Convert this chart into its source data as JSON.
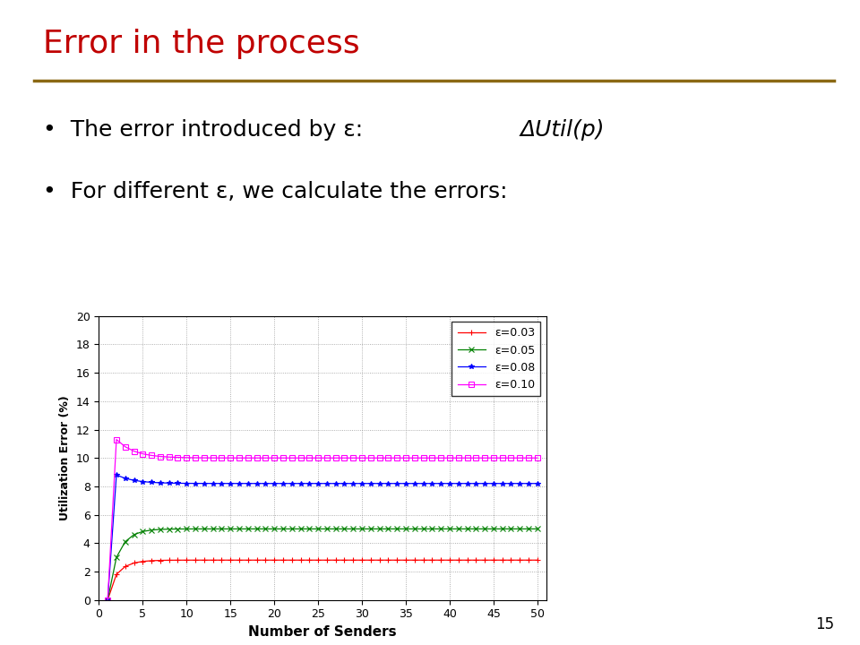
{
  "title": "Error in the process",
  "title_color": "#C00000",
  "rule_color": "#8B6914",
  "bullet1_plain": "The error introduced by ε: ",
  "bullet1_italic": "ΔUtil(p)",
  "bullet2": "For different ε, we calculate the errors:",
  "slide_number": "15",
  "background_color": "#ffffff",
  "xlabel": "Number of Senders",
  "ylabel": "Utilization Error (%)",
  "xlim": [
    0,
    51
  ],
  "ylim": [
    0,
    20
  ],
  "xticks": [
    0,
    5,
    10,
    15,
    20,
    25,
    30,
    35,
    40,
    45,
    50
  ],
  "yticks": [
    0,
    2,
    4,
    6,
    8,
    10,
    12,
    14,
    16,
    18,
    20
  ],
  "title_fontsize": 26,
  "bullet_fontsize": 18,
  "series": [
    {
      "label": "ε=0.03",
      "color": "red",
      "marker": "+",
      "x0": 1,
      "y0": 0.0,
      "x1": 2,
      "y1": 1.8,
      "x2": 3,
      "y2": 2.7,
      "settle_val": 2.8,
      "decay": 0.8
    },
    {
      "label": "ε=0.05",
      "color": "green",
      "marker": "x",
      "x0": 1,
      "y0": 0.0,
      "x1": 2,
      "y1": 3.0,
      "x2": 3,
      "y2": 4.9,
      "settle_val": 5.0,
      "decay": 0.8
    },
    {
      "label": "ε=0.08",
      "color": "blue",
      "marker": "*",
      "x0": 1,
      "y0": 0.0,
      "x1": 2,
      "y1": 8.8,
      "x2": 3,
      "y2": 8.5,
      "settle_val": 8.2,
      "decay": 0.5
    },
    {
      "label": "ε=0.10",
      "color": "magenta",
      "marker": "s",
      "x0": 1,
      "y0": 0.0,
      "x1": 2,
      "y1": 11.3,
      "x2": 3,
      "y2": 10.6,
      "settle_val": 10.0,
      "decay": 0.5
    }
  ]
}
